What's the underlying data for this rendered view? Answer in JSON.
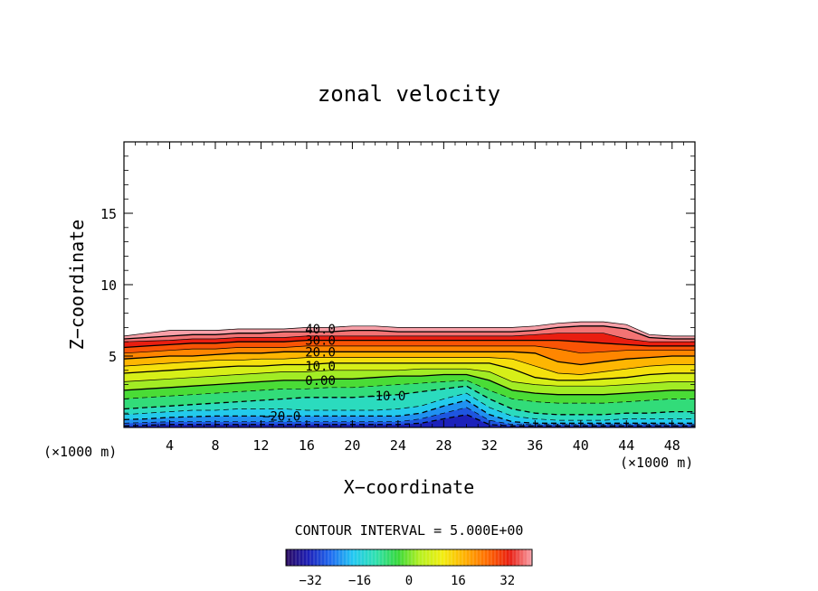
{
  "chart_data": {
    "type": "contour",
    "title": "zonal velocity",
    "xlabel": "X−coordinate",
    "ylabel": "Z−coordinate",
    "x_unit_left": "(×1000 m)",
    "x_unit_right": "(×1000 m)",
    "xlim": [
      0,
      50
    ],
    "ylim": [
      0,
      20
    ],
    "x_ticks": [
      4,
      8,
      12,
      16,
      20,
      24,
      28,
      32,
      36,
      40,
      44,
      48
    ],
    "y_ticks": [
      5,
      10,
      15
    ],
    "x_tick_labels": [
      "4",
      "8",
      "12",
      "16",
      "20",
      "24",
      "28",
      "32",
      "36",
      "40",
      "44",
      "48"
    ],
    "y_tick_labels": [
      "5",
      "10",
      "15"
    ],
    "contour_interval_text": "CONTOUR INTERVAL = 5.000E+00",
    "contour_labels": [
      {
        "text": "40.0",
        "x": 17.2,
        "z": 6.9
      },
      {
        "text": "30.0",
        "x": 17.2,
        "z": 6.1
      },
      {
        "text": "20.0",
        "x": 17.2,
        "z": 5.3
      },
      {
        "text": "10.0",
        "x": 17.2,
        "z": 4.3
      },
      {
        "text": "0.00",
        "x": 17.2,
        "z": 3.3
      },
      {
        "text": "−10.0",
        "x": 23.0,
        "z": 2.2
      },
      {
        "text": "−20.0",
        "x": 13.8,
        "z": 0.8
      }
    ],
    "levels": [
      -30,
      -25,
      -20,
      -15,
      -10,
      -5,
      0,
      5,
      10,
      15,
      20,
      25,
      30,
      35,
      40,
      45
    ],
    "level_heights": {
      "x": [
        0,
        2,
        4,
        6,
        8,
        10,
        12,
        14,
        16,
        18,
        20,
        22,
        24,
        26,
        28,
        30,
        32,
        34,
        36,
        38,
        40,
        42,
        44,
        46,
        48,
        50
      ],
      "z_by_level": [
        [
          0.1,
          0.15,
          0.2,
          0.2,
          0.2,
          0.2,
          0.2,
          0.2,
          0.2,
          0.2,
          0.2,
          0.2,
          0.2,
          0.3,
          0.6,
          0.9,
          0.2,
          0.1,
          0.1,
          0.1,
          0.1,
          0.1,
          0.1,
          0.1,
          0.1,
          0.1
        ],
        [
          0.3,
          0.35,
          0.4,
          0.4,
          0.4,
          0.4,
          0.4,
          0.4,
          0.4,
          0.4,
          0.4,
          0.4,
          0.4,
          0.6,
          1.0,
          1.4,
          0.5,
          0.2,
          0.2,
          0.2,
          0.2,
          0.2,
          0.2,
          0.2,
          0.2,
          0.2
        ],
        [
          0.55,
          0.6,
          0.7,
          0.75,
          0.8,
          0.8,
          0.8,
          0.8,
          0.8,
          0.8,
          0.8,
          0.8,
          0.8,
          1.0,
          1.5,
          1.9,
          0.9,
          0.4,
          0.3,
          0.3,
          0.3,
          0.3,
          0.3,
          0.3,
          0.3,
          0.3
        ],
        [
          0.9,
          1.0,
          1.1,
          1.2,
          1.2,
          1.3,
          1.3,
          1.3,
          1.2,
          1.2,
          1.2,
          1.2,
          1.3,
          1.5,
          2.0,
          2.4,
          1.4,
          0.8,
          0.6,
          0.5,
          0.5,
          0.5,
          0.6,
          0.6,
          0.6,
          0.6
        ],
        [
          1.3,
          1.4,
          1.5,
          1.6,
          1.7,
          1.8,
          1.9,
          2.0,
          2.1,
          2.1,
          2.1,
          2.2,
          2.3,
          2.5,
          2.7,
          2.9,
          2.0,
          1.3,
          1.0,
          0.9,
          0.9,
          0.9,
          1.0,
          1.0,
          1.1,
          1.1
        ],
        [
          2.0,
          2.1,
          2.2,
          2.3,
          2.4,
          2.5,
          2.6,
          2.7,
          2.7,
          2.8,
          2.8,
          2.9,
          3.0,
          3.1,
          3.2,
          3.3,
          2.6,
          2.0,
          1.8,
          1.7,
          1.7,
          1.7,
          1.8,
          1.9,
          2.0,
          2.0
        ],
        [
          2.6,
          2.7,
          2.8,
          2.9,
          3.0,
          3.1,
          3.2,
          3.3,
          3.3,
          3.4,
          3.4,
          3.5,
          3.6,
          3.6,
          3.7,
          3.7,
          3.3,
          2.6,
          2.4,
          2.3,
          2.3,
          2.3,
          2.4,
          2.5,
          2.6,
          2.6
        ],
        [
          3.2,
          3.3,
          3.4,
          3.5,
          3.6,
          3.7,
          3.8,
          3.9,
          3.9,
          4.0,
          4.0,
          4.0,
          4.0,
          4.1,
          4.1,
          4.1,
          3.9,
          3.2,
          3.0,
          2.9,
          2.9,
          2.9,
          3.0,
          3.1,
          3.2,
          3.2
        ],
        [
          3.8,
          3.9,
          4.0,
          4.1,
          4.2,
          4.3,
          4.3,
          4.4,
          4.4,
          4.5,
          4.5,
          4.5,
          4.5,
          4.5,
          4.5,
          4.5,
          4.5,
          4.1,
          3.5,
          3.3,
          3.3,
          3.4,
          3.5,
          3.7,
          3.8,
          3.8
        ],
        [
          4.3,
          4.4,
          4.5,
          4.6,
          4.7,
          4.7,
          4.8,
          4.8,
          4.9,
          4.9,
          4.9,
          4.9,
          4.9,
          4.9,
          4.9,
          4.9,
          4.9,
          4.8,
          4.3,
          3.8,
          3.7,
          3.9,
          4.1,
          4.3,
          4.4,
          4.4
        ],
        [
          4.8,
          4.9,
          5.0,
          5.0,
          5.1,
          5.2,
          5.2,
          5.3,
          5.3,
          5.3,
          5.3,
          5.3,
          5.3,
          5.3,
          5.3,
          5.3,
          5.3,
          5.3,
          5.2,
          4.6,
          4.4,
          4.6,
          4.8,
          4.9,
          5.0,
          5.0
        ],
        [
          5.2,
          5.3,
          5.4,
          5.5,
          5.5,
          5.6,
          5.6,
          5.6,
          5.7,
          5.7,
          5.7,
          5.7,
          5.7,
          5.7,
          5.7,
          5.7,
          5.7,
          5.7,
          5.7,
          5.5,
          5.2,
          5.3,
          5.4,
          5.4,
          5.4,
          5.4
        ],
        [
          5.6,
          5.7,
          5.8,
          5.9,
          5.9,
          6.0,
          6.0,
          6.0,
          6.1,
          6.1,
          6.1,
          6.1,
          6.1,
          6.1,
          6.1,
          6.1,
          6.1,
          6.1,
          6.1,
          6.1,
          6.0,
          5.9,
          5.8,
          5.7,
          5.7,
          5.7
        ],
        [
          6.0,
          6.05,
          6.1,
          6.2,
          6.2,
          6.3,
          6.3,
          6.3,
          6.4,
          6.4,
          6.4,
          6.4,
          6.4,
          6.4,
          6.4,
          6.4,
          6.4,
          6.4,
          6.5,
          6.6,
          6.6,
          6.6,
          6.2,
          6.0,
          6.0,
          6.0
        ],
        [
          6.2,
          6.3,
          6.4,
          6.5,
          6.5,
          6.6,
          6.6,
          6.7,
          6.7,
          6.7,
          6.8,
          6.8,
          6.7,
          6.7,
          6.7,
          6.7,
          6.7,
          6.7,
          6.8,
          7.0,
          7.1,
          7.1,
          6.9,
          6.3,
          6.2,
          6.2
        ],
        [
          6.4,
          6.6,
          6.8,
          6.8,
          6.8,
          6.9,
          6.9,
          6.9,
          7.0,
          7.0,
          7.1,
          7.1,
          7.0,
          7.0,
          7.0,
          7.0,
          7.0,
          7.0,
          7.1,
          7.3,
          7.4,
          7.4,
          7.2,
          6.5,
          6.4,
          6.4
        ]
      ]
    },
    "colorbar": {
      "ticks": [
        -32,
        -16,
        0,
        16,
        32
      ],
      "tick_labels": [
        "−32",
        "−16",
        "0",
        "16",
        "32"
      ],
      "range": [
        -40,
        40
      ],
      "colors": [
        "#2a0a5e",
        "#1c1fb8",
        "#1f6bf0",
        "#22c8f2",
        "#2ee0b0",
        "#36d83a",
        "#b6f020",
        "#f2ee10",
        "#ffb000",
        "#ff6a00",
        "#e81c10",
        "#f8a0a8"
      ]
    },
    "grid": false,
    "legend": "bottom-center"
  }
}
